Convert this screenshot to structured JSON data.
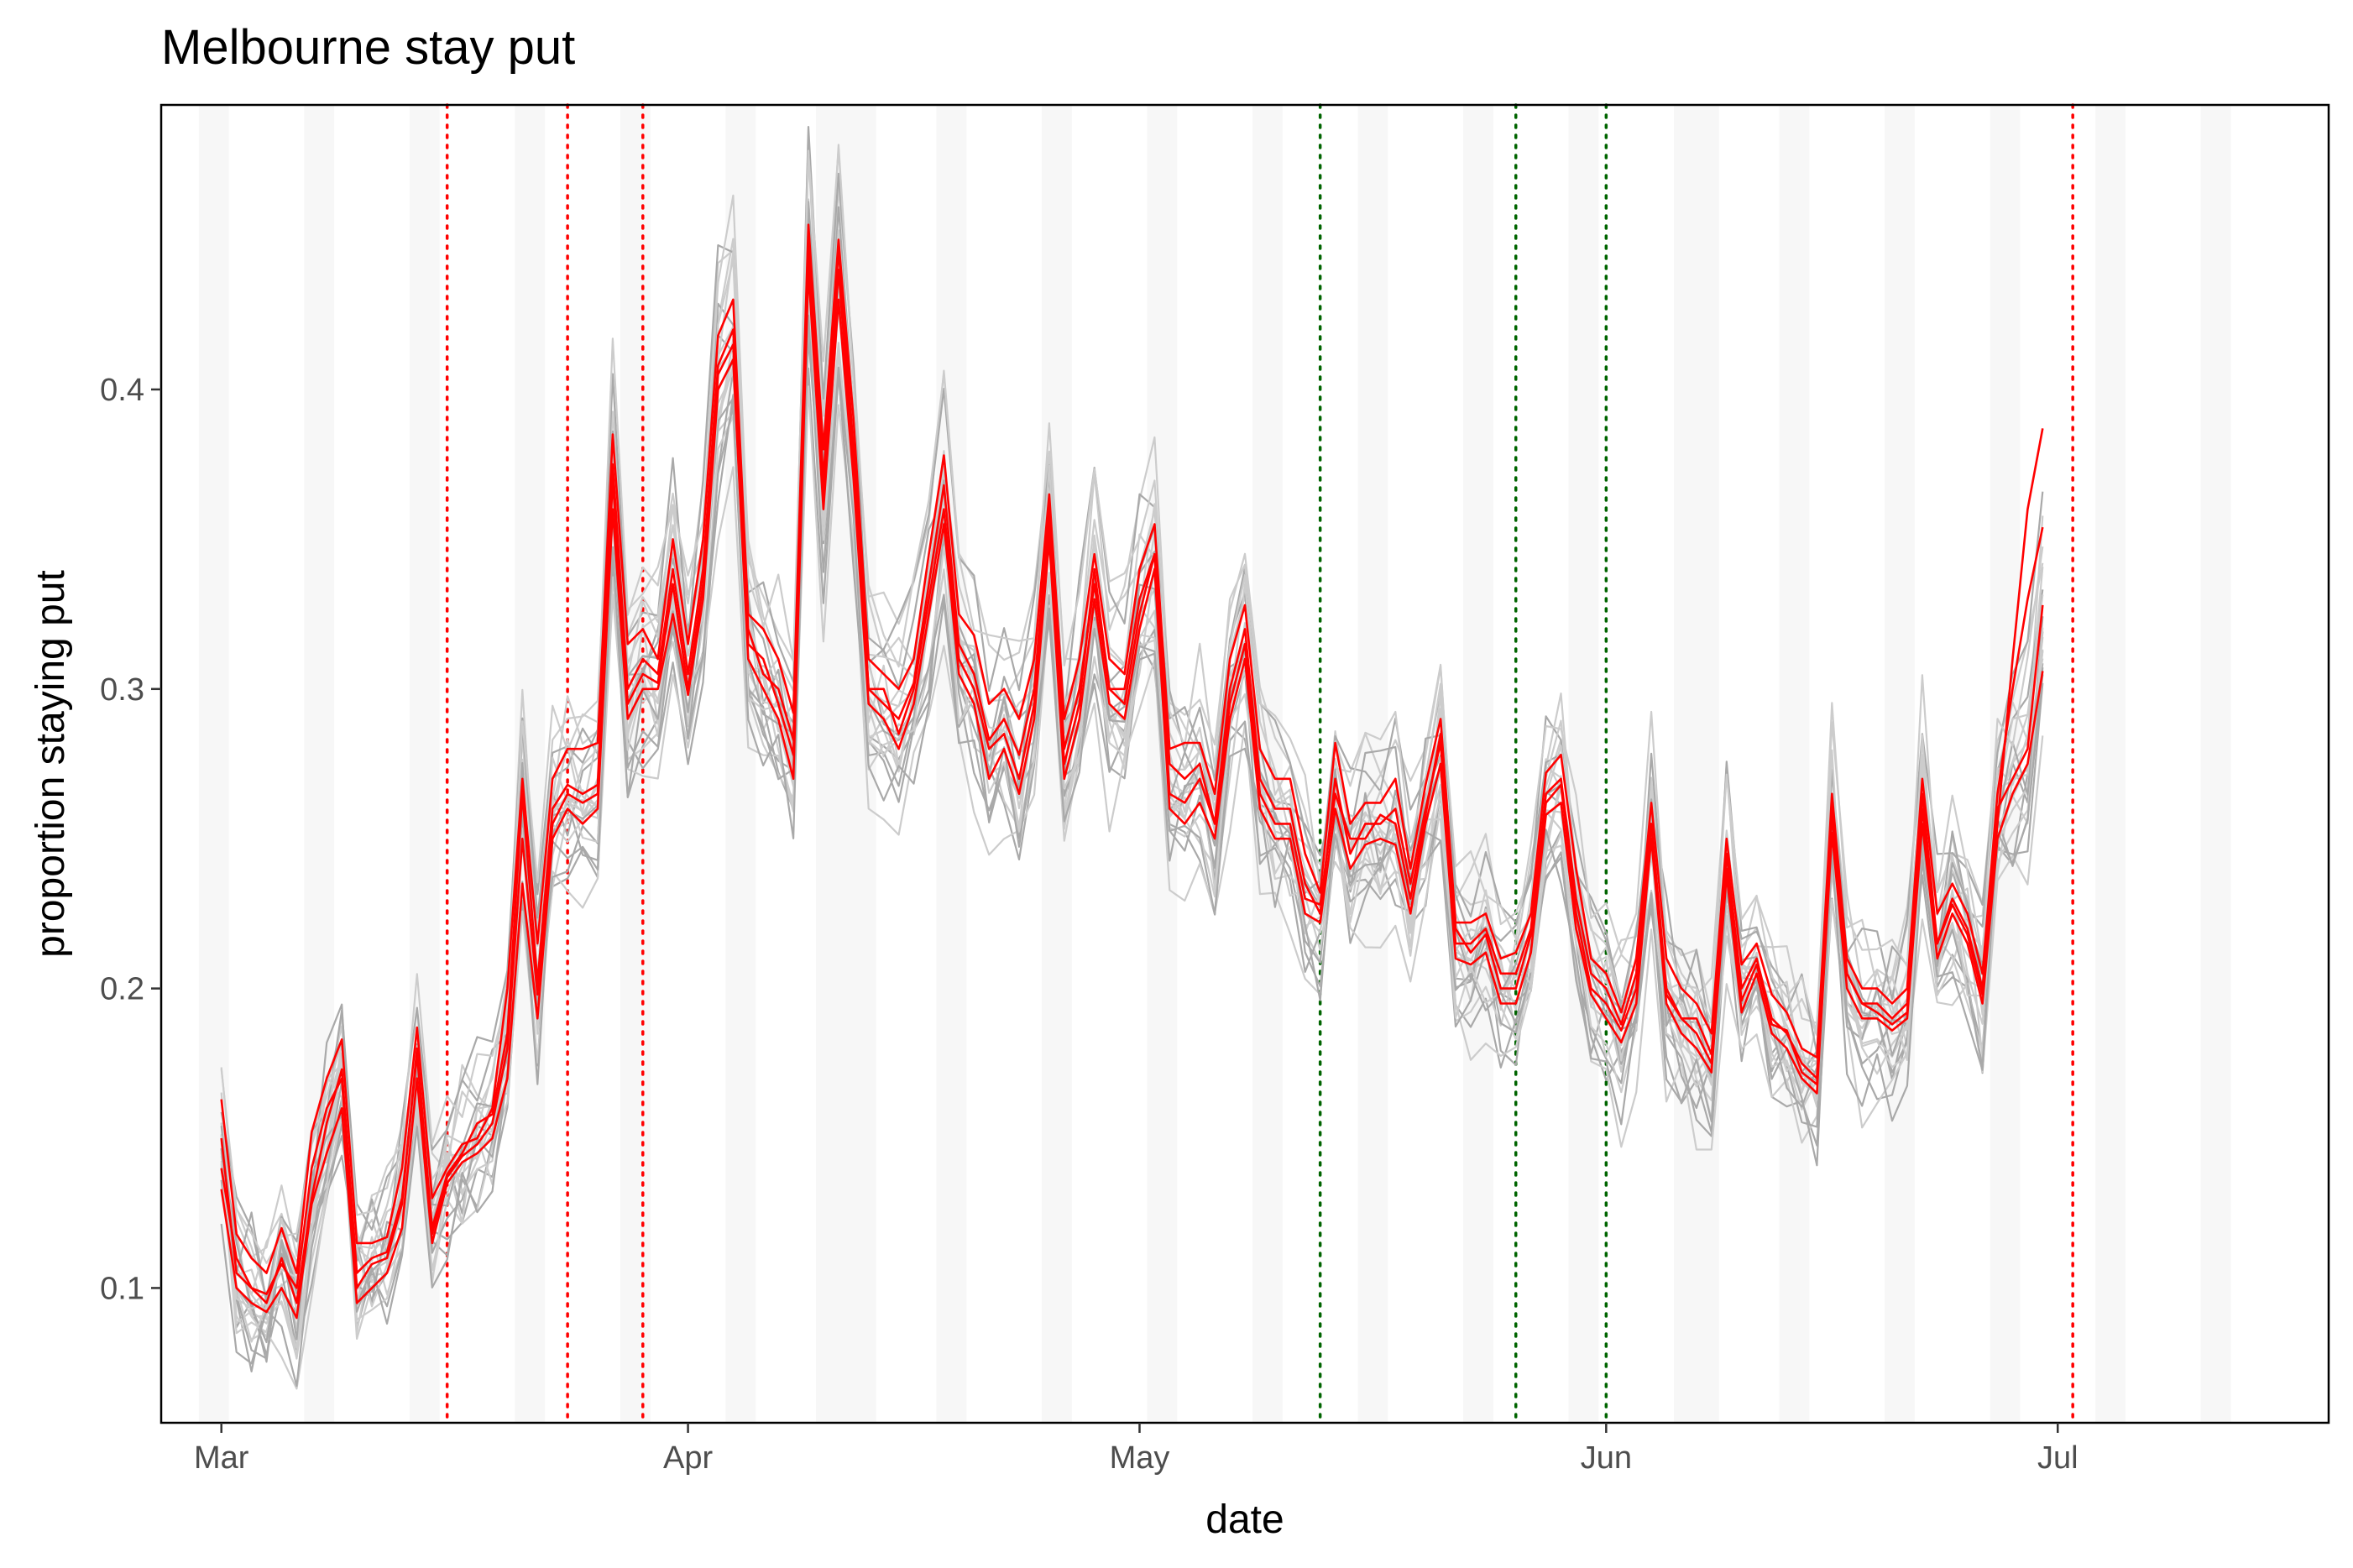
{
  "chart_data": {
    "type": "line",
    "title": "Melbourne stay put",
    "xlabel": "date",
    "ylabel": "proportion staying put",
    "xlim": [
      "2020-02-26",
      "2020-07-19"
    ],
    "ylim": [
      0.055,
      0.495
    ],
    "x_ticks": [
      {
        "date": "2020-03-01",
        "label": "Mar"
      },
      {
        "date": "2020-04-01",
        "label": "Apr"
      },
      {
        "date": "2020-05-01",
        "label": "May"
      },
      {
        "date": "2020-06-01",
        "label": "Jun"
      },
      {
        "date": "2020-07-01",
        "label": "Jul"
      }
    ],
    "y_ticks": [
      {
        "value": 0.1,
        "label": "0.1"
      },
      {
        "value": 0.2,
        "label": "0.2"
      },
      {
        "value": 0.3,
        "label": "0.3"
      },
      {
        "value": 0.4,
        "label": "0.4"
      }
    ],
    "weekend_bands": [
      [
        "2020-02-29",
        "2020-03-01"
      ],
      [
        "2020-03-07",
        "2020-03-08"
      ],
      [
        "2020-03-14",
        "2020-03-15"
      ],
      [
        "2020-03-21",
        "2020-03-22"
      ],
      [
        "2020-03-28",
        "2020-03-29"
      ],
      [
        "2020-04-04",
        "2020-04-05"
      ],
      [
        "2020-04-10",
        "2020-04-13"
      ],
      [
        "2020-04-18",
        "2020-04-19"
      ],
      [
        "2020-04-25",
        "2020-04-26"
      ],
      [
        "2020-05-02",
        "2020-05-03"
      ],
      [
        "2020-05-09",
        "2020-05-10"
      ],
      [
        "2020-05-16",
        "2020-05-17"
      ],
      [
        "2020-05-23",
        "2020-05-24"
      ],
      [
        "2020-05-30",
        "2020-05-31"
      ],
      [
        "2020-06-06",
        "2020-06-08"
      ],
      [
        "2020-06-13",
        "2020-06-14"
      ],
      [
        "2020-06-20",
        "2020-06-21"
      ],
      [
        "2020-06-27",
        "2020-06-28"
      ],
      [
        "2020-07-04",
        "2020-07-05"
      ],
      [
        "2020-07-11",
        "2020-07-12"
      ]
    ],
    "vlines": [
      {
        "date": "2020-03-16",
        "color": "#ff0000"
      },
      {
        "date": "2020-03-24",
        "color": "#ff0000"
      },
      {
        "date": "2020-03-29",
        "color": "#ff0000"
      },
      {
        "date": "2020-05-13",
        "color": "#006400"
      },
      {
        "date": "2020-05-26",
        "color": "#006400"
      },
      {
        "date": "2020-06-01",
        "color": "#006400"
      },
      {
        "date": "2020-07-02",
        "color": "#ff0000"
      }
    ],
    "x_start": "2020-03-01",
    "x_step_days": 1,
    "series": [
      {
        "color": "#ff0000",
        "values": [
          0.15,
          0.105,
          0.1,
          0.095,
          0.11,
          0.095,
          0.13,
          0.155,
          0.173,
          0.105,
          0.11,
          0.112,
          0.13,
          0.178,
          0.12,
          0.138,
          0.145,
          0.155,
          0.158,
          0.185,
          0.265,
          0.202,
          0.26,
          0.268,
          0.265,
          0.268,
          0.375,
          0.3,
          0.31,
          0.305,
          0.34,
          0.305,
          0.34,
          0.408,
          0.42,
          0.32,
          0.305,
          0.3,
          0.283,
          0.45,
          0.37,
          0.447,
          0.38,
          0.3,
          0.295,
          0.29,
          0.302,
          0.335,
          0.368,
          0.315,
          0.305,
          0.283,
          0.29,
          0.278,
          0.3,
          0.36,
          0.28,
          0.3,
          0.335,
          0.3,
          0.3,
          0.33,
          0.345,
          0.275,
          0.27,
          0.275,
          0.255,
          0.3,
          0.32,
          0.27,
          0.26,
          0.26,
          0.235,
          0.225,
          0.27,
          0.245,
          0.255,
          0.255,
          0.26,
          0.235,
          0.26,
          0.282,
          0.215,
          0.215,
          0.22,
          0.205,
          0.205,
          0.22,
          0.265,
          0.27,
          0.23,
          0.205,
          0.2,
          0.188,
          0.205,
          0.255,
          0.2,
          0.19,
          0.185,
          0.175,
          0.245,
          0.2,
          0.21,
          0.19,
          0.185,
          0.175,
          0.17,
          0.26,
          0.205,
          0.195,
          0.195,
          0.19,
          0.195,
          0.265,
          0.215,
          0.23,
          0.22,
          0.2,
          0.26,
          0.27,
          0.28,
          0.328
        ]
      },
      {
        "color": "#ff0000",
        "values": [
          0.163,
          0.118,
          0.11,
          0.105,
          0.12,
          0.105,
          0.152,
          0.17,
          0.183,
          0.115,
          0.115,
          0.117,
          0.14,
          0.187,
          0.13,
          0.14,
          0.148,
          0.15,
          0.16,
          0.2,
          0.27,
          0.215,
          0.27,
          0.28,
          0.28,
          0.282,
          0.385,
          0.315,
          0.32,
          0.31,
          0.35,
          0.315,
          0.35,
          0.418,
          0.43,
          0.325,
          0.32,
          0.31,
          0.292,
          0.455,
          0.38,
          0.45,
          0.39,
          0.31,
          0.305,
          0.3,
          0.31,
          0.345,
          0.378,
          0.325,
          0.318,
          0.295,
          0.3,
          0.29,
          0.31,
          0.365,
          0.29,
          0.31,
          0.345,
          0.31,
          0.305,
          0.34,
          0.355,
          0.28,
          0.282,
          0.282,
          0.265,
          0.31,
          0.328,
          0.28,
          0.27,
          0.27,
          0.245,
          0.232,
          0.282,
          0.255,
          0.262,
          0.262,
          0.27,
          0.24,
          0.268,
          0.29,
          0.222,
          0.222,
          0.225,
          0.21,
          0.212,
          0.225,
          0.272,
          0.278,
          0.24,
          0.21,
          0.205,
          0.192,
          0.21,
          0.262,
          0.21,
          0.2,
          0.195,
          0.185,
          0.25,
          0.208,
          0.215,
          0.198,
          0.192,
          0.18,
          0.177,
          0.265,
          0.21,
          0.2,
          0.2,
          0.195,
          0.2,
          0.27,
          0.225,
          0.235,
          0.225,
          0.205,
          0.265,
          0.3,
          0.33,
          0.354
        ]
      },
      {
        "color": "#ff0000",
        "values": [
          0.133,
          0.1,
          0.095,
          0.092,
          0.1,
          0.09,
          0.128,
          0.145,
          0.16,
          0.095,
          0.1,
          0.105,
          0.12,
          0.17,
          0.115,
          0.135,
          0.142,
          0.145,
          0.15,
          0.17,
          0.235,
          0.19,
          0.25,
          0.26,
          0.255,
          0.26,
          0.36,
          0.29,
          0.3,
          0.3,
          0.325,
          0.298,
          0.33,
          0.4,
          0.41,
          0.31,
          0.3,
          0.29,
          0.27,
          0.44,
          0.36,
          0.43,
          0.37,
          0.295,
          0.29,
          0.28,
          0.295,
          0.325,
          0.355,
          0.305,
          0.295,
          0.27,
          0.28,
          0.265,
          0.29,
          0.35,
          0.27,
          0.29,
          0.33,
          0.295,
          0.29,
          0.32,
          0.34,
          0.26,
          0.255,
          0.262,
          0.25,
          0.29,
          0.31,
          0.26,
          0.25,
          0.25,
          0.225,
          0.222,
          0.26,
          0.24,
          0.248,
          0.25,
          0.248,
          0.225,
          0.255,
          0.275,
          0.21,
          0.208,
          0.212,
          0.195,
          0.195,
          0.212,
          0.258,
          0.262,
          0.22,
          0.198,
          0.19,
          0.182,
          0.195,
          0.25,
          0.195,
          0.185,
          0.18,
          0.172,
          0.238,
          0.192,
          0.205,
          0.185,
          0.18,
          0.17,
          0.165,
          0.252,
          0.2,
          0.19,
          0.19,
          0.186,
          0.19,
          0.255,
          0.21,
          0.225,
          0.215,
          0.195,
          0.25,
          0.265,
          0.275,
          0.306
        ]
      },
      {
        "color": "#ff0000",
        "values": [
          0.14,
          0.11,
          0.1,
          0.098,
          0.108,
          0.1,
          0.14,
          0.16,
          0.17,
          0.1,
          0.108,
          0.11,
          0.128,
          0.18,
          0.118,
          0.137,
          0.144,
          0.148,
          0.155,
          0.18,
          0.25,
          0.198,
          0.255,
          0.265,
          0.262,
          0.265,
          0.37,
          0.295,
          0.305,
          0.302,
          0.335,
          0.3,
          0.335,
          0.405,
          0.415,
          0.315,
          0.31,
          0.295,
          0.278,
          0.445,
          0.365,
          0.44,
          0.375,
          0.3,
          0.3,
          0.285,
          0.3,
          0.33,
          0.36,
          0.31,
          0.3,
          0.28,
          0.285,
          0.27,
          0.295,
          0.355,
          0.275,
          0.295,
          0.34,
          0.3,
          0.295,
          0.325,
          0.345,
          0.265,
          0.262,
          0.27,
          0.255,
          0.295,
          0.315,
          0.265,
          0.255,
          0.255,
          0.23,
          0.228,
          0.265,
          0.25,
          0.25,
          0.258,
          0.255,
          0.23,
          0.258,
          0.285,
          0.22,
          0.212,
          0.218,
          0.2,
          0.2,
          0.218,
          0.262,
          0.268,
          0.225,
          0.2,
          0.195,
          0.186,
          0.2,
          0.255,
          0.198,
          0.19,
          0.19,
          0.178,
          0.24,
          0.196,
          0.208,
          0.188,
          0.186,
          0.172,
          0.168,
          0.258,
          0.205,
          0.195,
          0.192,
          0.188,
          0.192,
          0.26,
          0.215,
          0.228,
          0.218,
          0.198,
          0.255,
          0.31,
          0.36,
          0.387
        ]
      }
    ]
  }
}
